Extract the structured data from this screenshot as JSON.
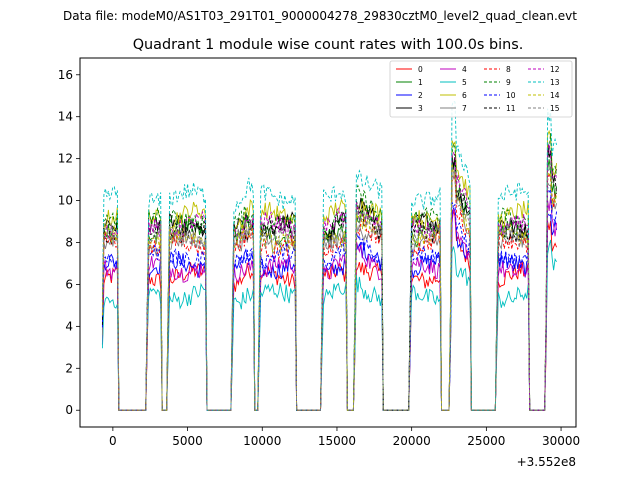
{
  "chart_data": {
    "type": "line",
    "suptitle": "Data file: modeM0/AS1T03_291T01_9000004278_29830cztM0_level2_quad_clean.evt",
    "title": "Quadrant 1 module wise count rates with 100.0s bins.",
    "xlabel": "",
    "ylabel": "",
    "x_offset_label": "+3.552e8",
    "xlim": [
      -2200,
      31000
    ],
    "ylim": [
      -0.8,
      16.8
    ],
    "x_ticks": [
      0,
      5000,
      10000,
      15000,
      20000,
      25000,
      30000
    ],
    "x_tick_labels": [
      "0",
      "5000",
      "10000",
      "15000",
      "20000",
      "25000",
      "30000"
    ],
    "y_ticks": [
      0,
      2,
      4,
      6,
      8,
      10,
      12,
      14,
      16
    ],
    "y_tick_labels": [
      "0",
      "2",
      "4",
      "6",
      "8",
      "10",
      "12",
      "14",
      "16"
    ],
    "legend_position": "top-right",
    "bin_width": 100,
    "on_intervals": [
      [
        -700,
        300
      ],
      [
        2300,
        3200
      ],
      [
        3700,
        6200
      ],
      [
        8000,
        9400
      ],
      [
        9800,
        12200
      ],
      [
        14000,
        15600
      ],
      [
        16200,
        18000
      ],
      [
        19900,
        21900
      ],
      [
        22600,
        23900
      ],
      [
        25700,
        27800
      ],
      [
        29000,
        29700
      ]
    ],
    "series": [
      {
        "name": "0",
        "base": 6.4,
        "color": "#ff0000",
        "dash": "solid"
      },
      {
        "name": "1",
        "base": 8.5,
        "color": "#008000",
        "dash": "solid"
      },
      {
        "name": "2",
        "base": 6.9,
        "color": "#0000ff",
        "dash": "solid"
      },
      {
        "name": "3",
        "base": 8.8,
        "color": "#000000",
        "dash": "solid"
      },
      {
        "name": "4",
        "base": 6.8,
        "color": "#bf00bf",
        "dash": "solid"
      },
      {
        "name": "5",
        "base": 5.5,
        "color": "#00bfbf",
        "dash": "solid"
      },
      {
        "name": "6",
        "base": 9.3,
        "color": "#bfbf00",
        "dash": "solid"
      },
      {
        "name": "7",
        "base": 8.0,
        "color": "#808080",
        "dash": "solid"
      },
      {
        "name": "8",
        "base": 7.9,
        "color": "#ff0000",
        "dash": "dashed"
      },
      {
        "name": "9",
        "base": 9.1,
        "color": "#008000",
        "dash": "dashed"
      },
      {
        "name": "10",
        "base": 7.3,
        "color": "#0000ff",
        "dash": "dashed"
      },
      {
        "name": "11",
        "base": 8.6,
        "color": "#000000",
        "dash": "dashed"
      },
      {
        "name": "12",
        "base": 8.8,
        "color": "#bf00bf",
        "dash": "dashed"
      },
      {
        "name": "13",
        "base": 10.2,
        "color": "#00bfbf",
        "dash": "dashed"
      },
      {
        "name": "14",
        "base": 8.2,
        "color": "#bfbf00",
        "dash": "dashed"
      },
      {
        "name": "15",
        "base": 8.3,
        "color": "#808080",
        "dash": "dashed"
      }
    ]
  }
}
